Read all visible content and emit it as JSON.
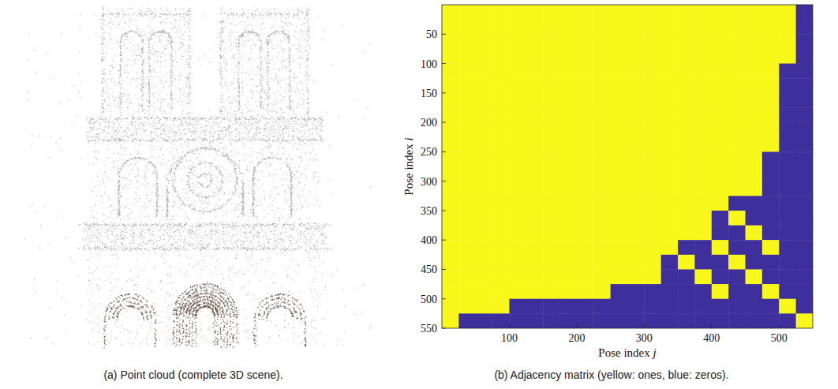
{
  "panel_a": {
    "caption": "(a) Point cloud (complete 3D scene)."
  },
  "chart_data": {
    "type": "heatmap",
    "caption": "(b) Adjacency matrix (yellow: ones, blue: zeros).",
    "x_label": "Pose index j",
    "y_label": "Pose index i",
    "xlim": [
      0,
      550
    ],
    "ylim": [
      550,
      0
    ],
    "xticks": [
      100,
      200,
      300,
      400,
      500
    ],
    "yticks": [
      50,
      100,
      150,
      200,
      250,
      300,
      350,
      400,
      450,
      500,
      550
    ],
    "x_bins": [
      0,
      25,
      50,
      75,
      100,
      125,
      150,
      175,
      200,
      225,
      250,
      275,
      300,
      325,
      350,
      375,
      400,
      425,
      450,
      475,
      500,
      525,
      550
    ],
    "y_bins": [
      0,
      25,
      50,
      75,
      100,
      125,
      150,
      175,
      200,
      225,
      250,
      275,
      300,
      325,
      350,
      375,
      400,
      425,
      450,
      475,
      500,
      525,
      550
    ],
    "cells": [
      [
        1,
        1,
        1,
        1,
        1,
        1,
        1,
        1,
        1,
        1,
        1,
        1,
        1,
        1,
        1,
        1,
        1,
        1,
        1,
        1,
        1,
        0
      ],
      [
        1,
        1,
        1,
        1,
        1,
        1,
        1,
        1,
        1,
        1,
        1,
        1,
        1,
        1,
        1,
        1,
        1,
        1,
        1,
        1,
        1,
        0
      ],
      [
        1,
        1,
        1,
        1,
        1,
        1,
        1,
        1,
        1,
        1,
        1,
        1,
        1,
        1,
        1,
        1,
        1,
        1,
        1,
        1,
        1,
        0
      ],
      [
        1,
        1,
        1,
        1,
        1,
        1,
        1,
        1,
        1,
        1,
        1,
        1,
        1,
        1,
        1,
        1,
        1,
        1,
        1,
        1,
        1,
        0
      ],
      [
        1,
        1,
        1,
        1,
        1,
        1,
        1,
        1,
        1,
        1,
        1,
        1,
        1,
        1,
        1,
        1,
        1,
        1,
        1,
        1,
        0,
        0
      ],
      [
        1,
        1,
        1,
        1,
        1,
        1,
        1,
        1,
        1,
        1,
        1,
        1,
        1,
        1,
        1,
        1,
        1,
        1,
        1,
        1,
        0,
        0
      ],
      [
        1,
        1,
        1,
        1,
        1,
        1,
        1,
        1,
        1,
        1,
        1,
        1,
        1,
        1,
        1,
        1,
        1,
        1,
        1,
        1,
        0,
        0
      ],
      [
        1,
        1,
        1,
        1,
        1,
        1,
        1,
        1,
        1,
        1,
        1,
        1,
        1,
        1,
        1,
        1,
        1,
        1,
        1,
        1,
        0,
        0
      ],
      [
        1,
        1,
        1,
        1,
        1,
        1,
        1,
        1,
        1,
        1,
        1,
        1,
        1,
        1,
        1,
        1,
        1,
        1,
        1,
        1,
        0,
        0
      ],
      [
        1,
        1,
        1,
        1,
        1,
        1,
        1,
        1,
        1,
        1,
        1,
        1,
        1,
        1,
        1,
        1,
        1,
        1,
        1,
        1,
        0,
        0
      ],
      [
        1,
        1,
        1,
        1,
        1,
        1,
        1,
        1,
        1,
        1,
        1,
        1,
        1,
        1,
        1,
        1,
        1,
        1,
        1,
        0,
        0,
        0
      ],
      [
        1,
        1,
        1,
        1,
        1,
        1,
        1,
        1,
        1,
        1,
        1,
        1,
        1,
        1,
        1,
        1,
        1,
        1,
        1,
        0,
        0,
        0
      ],
      [
        1,
        1,
        1,
        1,
        1,
        1,
        1,
        1,
        1,
        1,
        1,
        1,
        1,
        1,
        1,
        1,
        1,
        1,
        1,
        0,
        0,
        0
      ],
      [
        1,
        1,
        1,
        1,
        1,
        1,
        1,
        1,
        1,
        1,
        1,
        1,
        1,
        1,
        1,
        1,
        1,
        0,
        0,
        0,
        0,
        0
      ],
      [
        1,
        1,
        1,
        1,
        1,
        1,
        1,
        1,
        1,
        1,
        1,
        1,
        1,
        1,
        1,
        1,
        0,
        1,
        0,
        0,
        0,
        0
      ],
      [
        1,
        1,
        1,
        1,
        1,
        1,
        1,
        1,
        1,
        1,
        1,
        1,
        1,
        1,
        1,
        1,
        0,
        0,
        1,
        0,
        0,
        0
      ],
      [
        1,
        1,
        1,
        1,
        1,
        1,
        1,
        1,
        1,
        1,
        1,
        1,
        1,
        1,
        0,
        0,
        1,
        0,
        0,
        1,
        0,
        0
      ],
      [
        1,
        1,
        1,
        1,
        1,
        1,
        1,
        1,
        1,
        1,
        1,
        1,
        1,
        0,
        1,
        0,
        0,
        1,
        0,
        0,
        0,
        0
      ],
      [
        1,
        1,
        1,
        1,
        1,
        1,
        1,
        1,
        1,
        1,
        1,
        1,
        1,
        0,
        0,
        1,
        0,
        0,
        1,
        0,
        0,
        0
      ],
      [
        1,
        1,
        1,
        1,
        1,
        1,
        1,
        1,
        1,
        1,
        0,
        0,
        0,
        0,
        0,
        0,
        1,
        0,
        0,
        1,
        0,
        0
      ],
      [
        1,
        1,
        1,
        1,
        0,
        0,
        0,
        0,
        0,
        0,
        0,
        0,
        0,
        0,
        0,
        0,
        0,
        0,
        0,
        0,
        1,
        0
      ],
      [
        1,
        0,
        0,
        0,
        0,
        0,
        0,
        0,
        0,
        0,
        0,
        0,
        0,
        0,
        0,
        0,
        0,
        0,
        0,
        0,
        0,
        1
      ]
    ]
  }
}
